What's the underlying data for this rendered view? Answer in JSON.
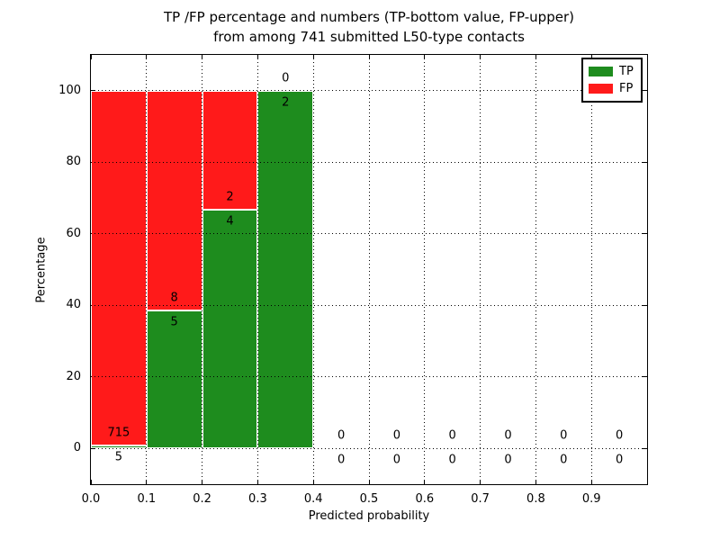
{
  "chart_data": {
    "type": "bar",
    "stacked": true,
    "title": "TP /FP percentage and numbers (TP-bottom value, FP-upper)\nfrom among 741 submitted L50-type contacts",
    "xlabel": "Predicted probability",
    "ylabel": "Percentage",
    "xlim": [
      0,
      1
    ],
    "ylim": [
      -10,
      110
    ],
    "xticks": [
      "0.0",
      "0.1",
      "0.2",
      "0.3",
      "0.4",
      "0.5",
      "0.6",
      "0.7",
      "0.8",
      "0.9"
    ],
    "yticks": [
      0,
      20,
      40,
      60,
      80,
      100
    ],
    "grid": "dotted both axes, drawn over bars",
    "legend_position": "upper right",
    "legend": {
      "entries": [
        {
          "label": "TP",
          "color": "#1e8c1e"
        },
        {
          "label": "FP",
          "color": "#ff1a1a"
        }
      ]
    },
    "colors": {
      "tp": "#1e8c1e",
      "fp": "#ff1a1a",
      "bar_edge": "#ffffff"
    },
    "total_contacts": 741,
    "note": "Each 0.1-wide bin is a 100%-stacked bar of TP (green, bottom) and FP (red, top); text labels show raw counts with TP count below the segment boundary and FP count above it",
    "bins": [
      {
        "range": [
          0.0,
          0.1
        ],
        "tp": 5,
        "fp": 715
      },
      {
        "range": [
          0.1,
          0.2
        ],
        "tp": 5,
        "fp": 8
      },
      {
        "range": [
          0.2,
          0.3
        ],
        "tp": 4,
        "fp": 2
      },
      {
        "range": [
          0.3,
          0.4
        ],
        "tp": 2,
        "fp": 0
      },
      {
        "range": [
          0.4,
          0.5
        ],
        "tp": 0,
        "fp": 0
      },
      {
        "range": [
          0.5,
          0.6
        ],
        "tp": 0,
        "fp": 0
      },
      {
        "range": [
          0.6,
          0.7
        ],
        "tp": 0,
        "fp": 0
      },
      {
        "range": [
          0.7,
          0.8
        ],
        "tp": 0,
        "fp": 0
      },
      {
        "range": [
          0.8,
          0.9
        ],
        "tp": 0,
        "fp": 0
      },
      {
        "range": [
          0.9,
          1.0
        ],
        "tp": 0,
        "fp": 0
      }
    ]
  }
}
